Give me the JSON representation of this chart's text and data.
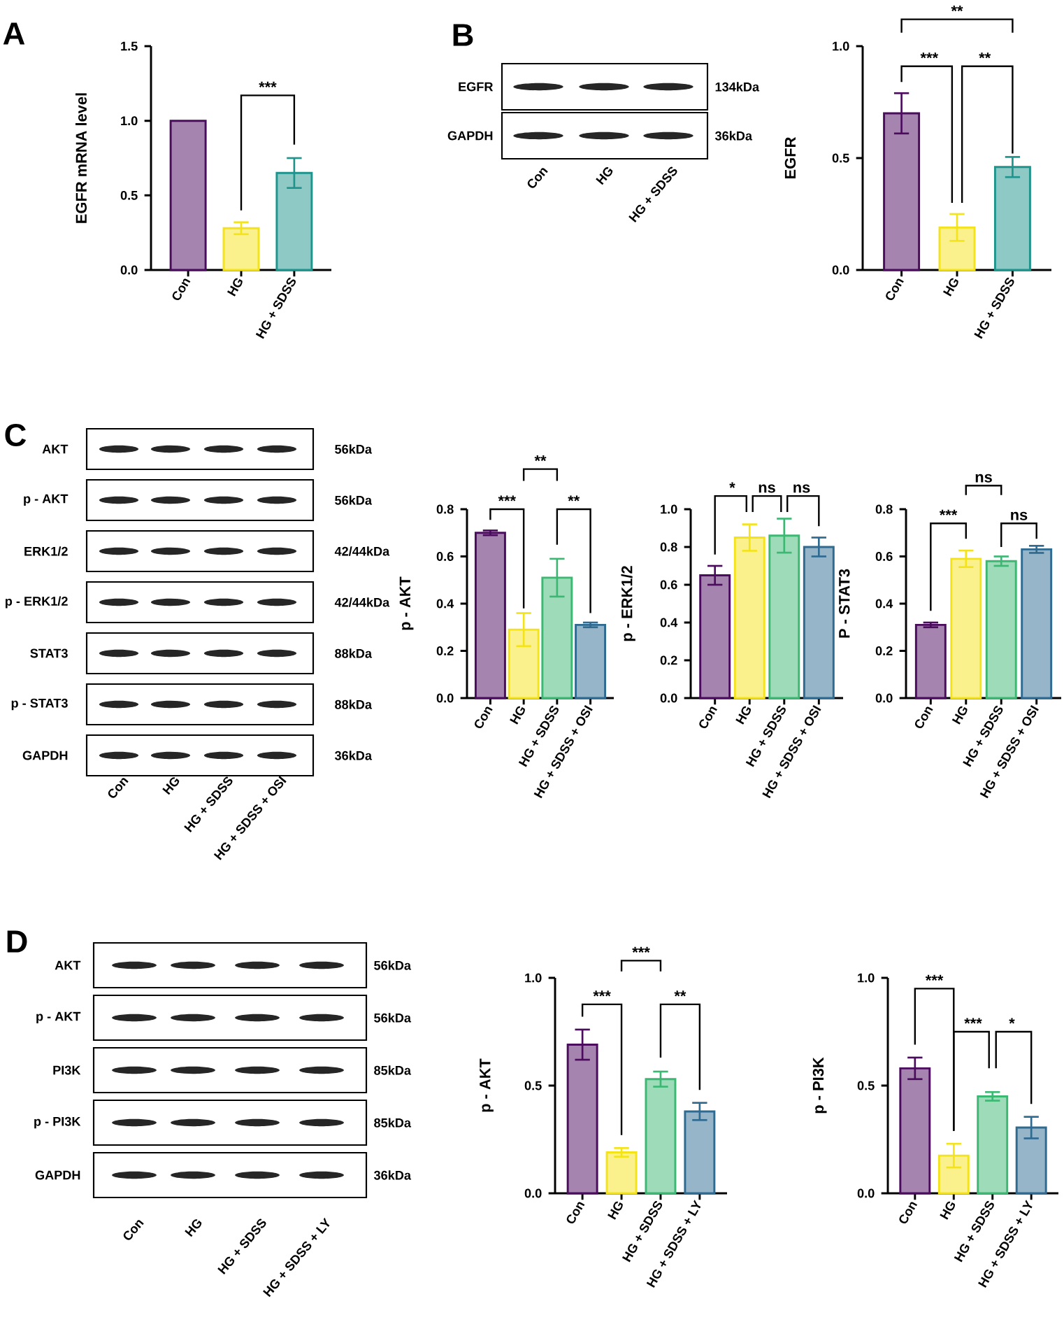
{
  "chart_data": [
    {
      "type": "bar",
      "title": "A",
      "ylabel": "EGFR mRNA level",
      "categories": [
        "Con",
        "HG",
        "HG + SDSS"
      ],
      "values": [
        1.0,
        0.28,
        0.65
      ],
      "errors": [
        null,
        0.04,
        0.1
      ],
      "colors": [
        "#4b0c5e",
        "#f5e31a",
        "#1f948c"
      ],
      "ylim": [
        0,
        1.5
      ],
      "yticks": [
        {
          "value": 0,
          "label": "0.0"
        },
        {
          "value": 0.5,
          "label": "0.5"
        },
        {
          "value": 1.0,
          "label": "1.0"
        },
        {
          "value": 1.5,
          "label": "1.5"
        }
      ],
      "annotations": [
        "***"
      ]
    },
    {
      "type": "other",
      "title": "B",
      "categories": [
        "Con",
        "HG",
        "HG + SDSS"
      ],
      "y_categories": [
        "EGFR",
        "GAPDH"
      ],
      "y2_categories": [
        "134kDa",
        "36kDa"
      ]
    },
    {
      "type": "bar",
      "ylabel": "EGFR",
      "categories": [
        "Con",
        "HG",
        "HG + SDSS"
      ],
      "values": [
        0.7,
        0.19,
        0.46
      ],
      "errors": [
        0.09,
        0.06,
        0.045
      ],
      "colors": [
        "#4b0c5e",
        "#f5e31a",
        "#1f948c"
      ],
      "ylim": [
        0,
        1.0
      ],
      "yticks": [
        {
          "value": 0,
          "label": "0.0"
        },
        {
          "value": 0.5,
          "label": "0.5"
        },
        {
          "value": 1.0,
          "label": "1.0"
        }
      ],
      "annotations": [
        "**",
        "***",
        "**"
      ]
    },
    {
      "type": "other",
      "title": "C",
      "categories": [
        "Con",
        "HG",
        "HG + SDSS",
        "HG + SDSS + OSI"
      ],
      "y_categories": [
        "AKT",
        "p - AKT",
        "ERK1/2",
        "p - ERK1/2",
        "STAT3",
        "p - STAT3",
        "GAPDH"
      ],
      "y2_categories": [
        "56kDa",
        "56kDa",
        "42/44kDa",
        "42/44kDa",
        "88kDa",
        "88kDa",
        "36kDa"
      ]
    },
    {
      "type": "bar",
      "ylabel": "p - AKT",
      "categories": [
        "Con",
        "HG",
        "HG + SDSS",
        "HG + SDSS + OSI"
      ],
      "values": [
        0.7,
        0.29,
        0.51,
        0.31
      ],
      "errors": [
        0.01,
        0.07,
        0.08,
        0.01
      ],
      "colors": [
        "#4b0c5e",
        "#f5e31a",
        "#3cb873",
        "#2f6a91"
      ],
      "ylim": [
        0,
        0.8
      ],
      "yticks": [
        {
          "value": 0,
          "label": "0.0"
        },
        {
          "value": 0.2,
          "label": "0.2"
        },
        {
          "value": 0.4,
          "label": "0.4"
        },
        {
          "value": 0.6,
          "label": "0.6"
        },
        {
          "value": 0.8,
          "label": "0.8"
        }
      ],
      "annotations": [
        "**",
        "***",
        "**"
      ]
    },
    {
      "type": "bar",
      "ylabel": "p - ERK1/2",
      "categories": [
        "Con",
        "HG",
        "HG + SDSS",
        "HG + SDSS + OSI"
      ],
      "values": [
        0.65,
        0.85,
        0.86,
        0.8
      ],
      "errors": [
        0.05,
        0.07,
        0.09,
        0.05
      ],
      "colors": [
        "#4b0c5e",
        "#f5e31a",
        "#3cb873",
        "#2f6a91"
      ],
      "ylim": [
        0,
        1.0
      ],
      "yticks": [
        {
          "value": 0,
          "label": "0.0"
        },
        {
          "value": 0.2,
          "label": "0.2"
        },
        {
          "value": 0.4,
          "label": "0.4"
        },
        {
          "value": 0.6,
          "label": "0.6"
        },
        {
          "value": 0.8,
          "label": "0.8"
        },
        {
          "value": 1.0,
          "label": "1.0"
        }
      ],
      "annotations": [
        "*",
        "ns",
        "ns"
      ]
    },
    {
      "type": "bar",
      "ylabel": "P - STAT3",
      "categories": [
        "Con",
        "HG",
        "HG + SDSS",
        "HG + SDSS + OSI"
      ],
      "values": [
        0.31,
        0.59,
        0.58,
        0.63
      ],
      "errors": [
        0.01,
        0.035,
        0.02,
        0.015
      ],
      "colors": [
        "#4b0c5e",
        "#f5e31a",
        "#3cb873",
        "#2f6a91"
      ],
      "ylim": [
        0,
        0.8
      ],
      "yticks": [
        {
          "value": 0,
          "label": "0.0"
        },
        {
          "value": 0.2,
          "label": "0.2"
        },
        {
          "value": 0.4,
          "label": "0.4"
        },
        {
          "value": 0.6,
          "label": "0.6"
        },
        {
          "value": 0.8,
          "label": "0.8"
        }
      ],
      "annotations": [
        "ns",
        "***",
        "ns"
      ]
    },
    {
      "type": "other",
      "title": "D",
      "categories": [
        "Con",
        "HG",
        "HG + SDSS",
        "HG + SDSS + LY"
      ],
      "y_categories": [
        "AKT",
        "p - AKT",
        "PI3K",
        "p - PI3K",
        "GAPDH"
      ],
      "y2_categories": [
        "56kDa",
        "56kDa",
        "85kDa",
        "85kDa",
        "36kDa"
      ]
    },
    {
      "type": "bar",
      "ylabel": "p - AKT",
      "categories": [
        "Con",
        "HG",
        "HG + SDSS",
        "HG + SDSS + LY"
      ],
      "values": [
        0.69,
        0.19,
        0.53,
        0.38
      ],
      "errors": [
        0.07,
        0.02,
        0.035,
        0.04
      ],
      "colors": [
        "#4b0c5e",
        "#f5e31a",
        "#3cb873",
        "#2f6a91"
      ],
      "ylim": [
        0,
        1.0
      ],
      "yticks": [
        {
          "value": 0,
          "label": "0.0"
        },
        {
          "value": 0.5,
          "label": "0.5"
        },
        {
          "value": 1.0,
          "label": "1.0"
        }
      ],
      "annotations": [
        "***",
        "***",
        "**"
      ]
    },
    {
      "type": "bar",
      "ylabel": "p - PI3K",
      "categories": [
        "Con",
        "HG",
        "HG + SDSS",
        "HG + SDSS + LY"
      ],
      "values": [
        0.58,
        0.175,
        0.45,
        0.305
      ],
      "errors": [
        0.05,
        0.055,
        0.02,
        0.05
      ],
      "colors": [
        "#4b0c5e",
        "#f5e31a",
        "#3cb873",
        "#2f6a91"
      ],
      "ylim": [
        0,
        1.0
      ],
      "yticks": [
        {
          "value": 0,
          "label": "0.0"
        },
        {
          "value": 0.5,
          "label": "0.5"
        },
        {
          "value": 1.0,
          "label": "1.0"
        }
      ],
      "annotations": [
        "***",
        "***",
        "*"
      ]
    }
  ]
}
